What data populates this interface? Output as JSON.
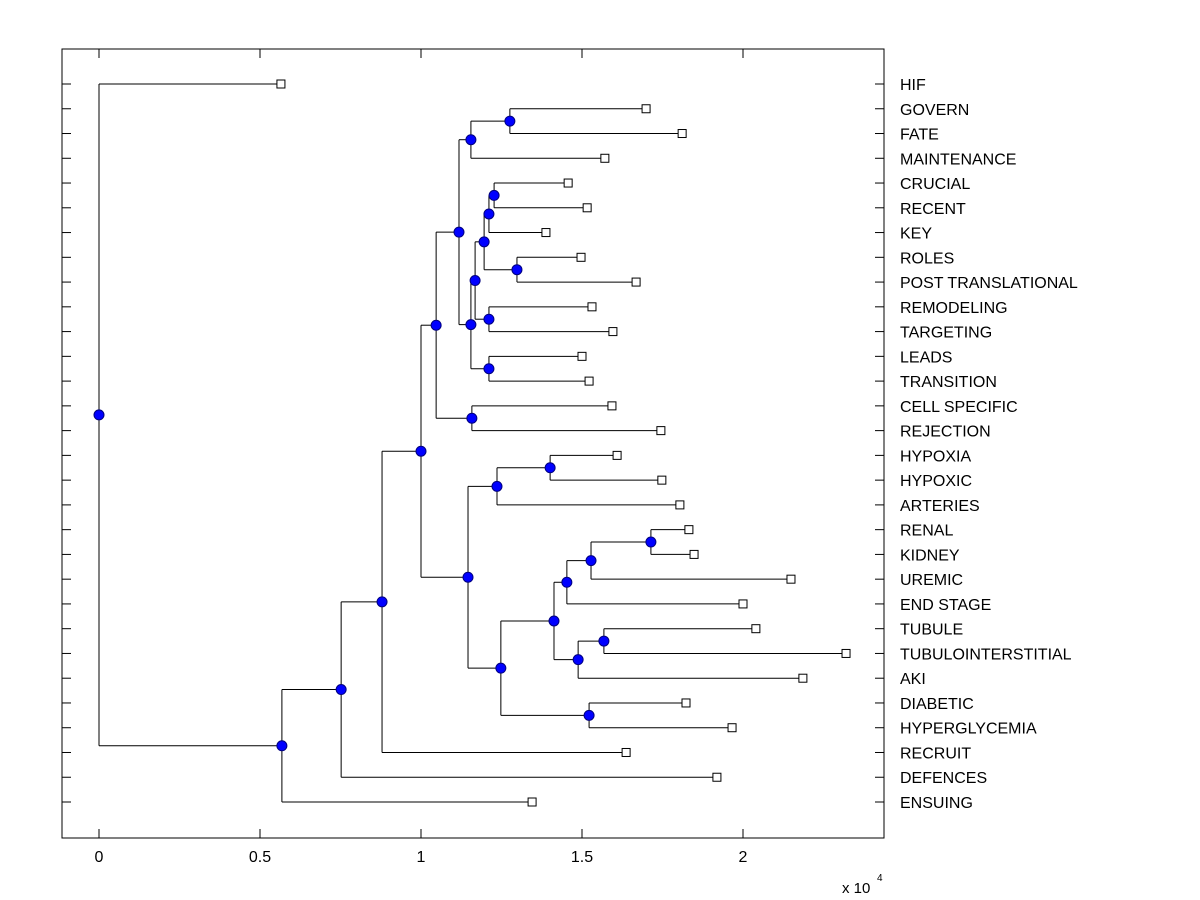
{
  "chart_data": {
    "type": "dendrogram",
    "title": "",
    "xlabel": "",
    "ylabel": "",
    "x_multiplier_label": "x 10",
    "x_multiplier_exponent": "4",
    "xlim": [
      -0.115,
      2.438
    ],
    "xticks": [
      0,
      0.5,
      1,
      1.5,
      2
    ],
    "xtick_labels": [
      "0",
      "0.5",
      "1",
      "1.5",
      "2"
    ],
    "grid": false,
    "legend": "none",
    "colors": {
      "node_fill": "#0000ff",
      "node_edge": "#00007f",
      "leaf_fill": "#ffffff",
      "line": "#000000"
    },
    "leaves": [
      {
        "id": "HIF",
        "label": "HIF",
        "height": 0.565
      },
      {
        "id": "GOVERN",
        "label": "GOVERN",
        "height": 1.699
      },
      {
        "id": "FATE",
        "label": "FATE",
        "height": 1.811
      },
      {
        "id": "MAINTENANCE",
        "label": "MAINTENANCE",
        "height": 1.571
      },
      {
        "id": "CRUCIAL",
        "label": "CRUCIAL",
        "height": 1.457
      },
      {
        "id": "RECENT",
        "label": "RECENT",
        "height": 1.516
      },
      {
        "id": "KEY",
        "label": "KEY",
        "height": 1.388
      },
      {
        "id": "ROLES",
        "label": "ROLES",
        "height": 1.497
      },
      {
        "id": "POST",
        "label": "POST TRANSLATIONAL",
        "height": 1.668
      },
      {
        "id": "REMODELING",
        "label": "REMODELING",
        "height": 1.531
      },
      {
        "id": "TARGETING",
        "label": "TARGETING",
        "height": 1.596
      },
      {
        "id": "LEADS",
        "label": "LEADS",
        "height": 1.5
      },
      {
        "id": "TRANSITION",
        "label": "TRANSITION",
        "height": 1.522
      },
      {
        "id": "CELL",
        "label": "CELL SPECIFIC",
        "height": 1.593
      },
      {
        "id": "REJECTION",
        "label": "REJECTION",
        "height": 1.745
      },
      {
        "id": "HYPOXIA",
        "label": "HYPOXIA",
        "height": 1.609
      },
      {
        "id": "HYPOXIC",
        "label": "HYPOXIC",
        "height": 1.748
      },
      {
        "id": "ARTERIES",
        "label": "ARTERIES",
        "height": 1.804
      },
      {
        "id": "RENAL",
        "label": "RENAL",
        "height": 1.832
      },
      {
        "id": "KIDNEY",
        "label": "KIDNEY",
        "height": 1.848
      },
      {
        "id": "UREMIC",
        "label": "UREMIC",
        "height": 2.149
      },
      {
        "id": "ENDSTAGE",
        "label": "END STAGE",
        "height": 2.0
      },
      {
        "id": "TUBULE",
        "label": "TUBULE",
        "height": 2.04
      },
      {
        "id": "TUBULO",
        "label": "TUBULOINTERSTITIAL",
        "height": 2.32
      },
      {
        "id": "AKI",
        "label": "AKI",
        "height": 2.186
      },
      {
        "id": "DIABETIC",
        "label": "DIABETIC",
        "height": 1.823
      },
      {
        "id": "HYPERGLY",
        "label": "HYPERGLYCEMIA",
        "height": 1.966
      },
      {
        "id": "RECRUIT",
        "label": "RECRUIT",
        "height": 1.637
      },
      {
        "id": "DEFENCES",
        "label": "DEFENCES",
        "height": 1.919
      },
      {
        "id": "ENSUING",
        "label": "ENSUING",
        "height": 1.345
      }
    ],
    "nodes": [
      {
        "id": "n1",
        "height": 1.276,
        "children": [
          "GOVERN",
          "FATE"
        ]
      },
      {
        "id": "n2",
        "height": 1.155,
        "children": [
          "n1",
          "MAINTENANCE"
        ]
      },
      {
        "id": "n3",
        "height": 1.227,
        "children": [
          "CRUCIAL",
          "RECENT"
        ]
      },
      {
        "id": "n4",
        "height": 1.211,
        "children": [
          "n3",
          "KEY"
        ]
      },
      {
        "id": "n5",
        "height": 1.298,
        "children": [
          "ROLES",
          "POST"
        ]
      },
      {
        "id": "n6",
        "height": 1.196,
        "children": [
          "n4",
          "n5"
        ]
      },
      {
        "id": "n7",
        "height": 1.211,
        "children": [
          "REMODELING",
          "TARGETING"
        ]
      },
      {
        "id": "n8",
        "height": 1.168,
        "children": [
          "n6",
          "n7"
        ]
      },
      {
        "id": "n9",
        "height": 1.211,
        "children": [
          "LEADS",
          "TRANSITION"
        ]
      },
      {
        "id": "n10",
        "height": 1.155,
        "children": [
          "n8",
          "n9"
        ]
      },
      {
        "id": "n11",
        "height": 1.118,
        "children": [
          "n2",
          "n10"
        ]
      },
      {
        "id": "n12",
        "height": 1.158,
        "children": [
          "CELL",
          "REJECTION"
        ]
      },
      {
        "id": "n13",
        "height": 1.047,
        "children": [
          "n11",
          "n12"
        ]
      },
      {
        "id": "n14",
        "height": 1.401,
        "children": [
          "HYPOXIA",
          "HYPOXIC"
        ]
      },
      {
        "id": "n15",
        "height": 1.236,
        "children": [
          "n14",
          "ARTERIES"
        ]
      },
      {
        "id": "n16",
        "height": 1.714,
        "children": [
          "RENAL",
          "KIDNEY"
        ]
      },
      {
        "id": "n17",
        "height": 1.528,
        "children": [
          "n16",
          "UREMIC"
        ]
      },
      {
        "id": "n18",
        "height": 1.453,
        "children": [
          "n17",
          "ENDSTAGE"
        ]
      },
      {
        "id": "n19",
        "height": 1.568,
        "children": [
          "TUBULE",
          "TUBULO"
        ]
      },
      {
        "id": "n20",
        "height": 1.488,
        "children": [
          "n19",
          "AKI"
        ]
      },
      {
        "id": "n21",
        "height": 1.413,
        "children": [
          "n18",
          "n20"
        ]
      },
      {
        "id": "n22",
        "height": 1.522,
        "children": [
          "DIABETIC",
          "HYPERGLY"
        ]
      },
      {
        "id": "n23",
        "height": 1.248,
        "children": [
          "n21",
          "n22"
        ]
      },
      {
        "id": "n24",
        "height": 1.146,
        "children": [
          "n15",
          "n23"
        ]
      },
      {
        "id": "n25",
        "height": 1.0,
        "children": [
          "n13",
          "n24"
        ]
      },
      {
        "id": "n26",
        "height": 0.879,
        "children": [
          "n25",
          "RECRUIT"
        ]
      },
      {
        "id": "n27",
        "height": 0.752,
        "children": [
          "n26",
          "DEFENCES"
        ]
      },
      {
        "id": "n28",
        "height": 0.568,
        "children": [
          "n27",
          "ENSUING"
        ]
      },
      {
        "id": "root",
        "height": 0.0,
        "children": [
          "HIF",
          "n28"
        ]
      }
    ]
  }
}
